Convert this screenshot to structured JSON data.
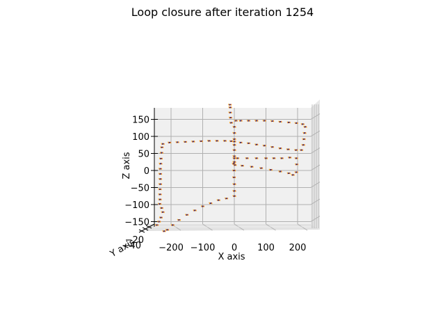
{
  "chart_data": {
    "type": "scatter",
    "projection": "3d",
    "title": "Loop closure after iteration 1254",
    "xlabel": "X axis",
    "ylabel": "Y axis",
    "zlabel": "Z axis",
    "xticks": [
      "−200",
      "−100",
      "0",
      "100",
      "200"
    ],
    "xtick_values": [
      -200,
      -100,
      0,
      100,
      200
    ],
    "zticks": [
      "−150",
      "−100",
      "−50",
      "0",
      "50",
      "100",
      "150"
    ],
    "ztick_values": [
      -150,
      -100,
      -50,
      0,
      50,
      100,
      150
    ],
    "yticks": [
      "−40",
      "−20"
    ],
    "xlim": [
      -250,
      250
    ],
    "zlim": [
      -170,
      190
    ],
    "grid": true,
    "marker_colors": {
      "arrow_dark": "#3a2a6a",
      "arrow_warm": "#e8621a",
      "arrow_light": "#f5b52e"
    },
    "pane_color": "#f0f0f0",
    "grid_color": "#b0b0b0",
    "series": [
      {
        "points": [
          [
            -245,
            -160
          ],
          [
            -238,
            -150
          ],
          [
            -232,
            -138
          ],
          [
            -226,
            -122
          ],
          [
            -230,
            -110
          ],
          [
            -236,
            -98
          ],
          [
            -235,
            -85
          ],
          [
            -235,
            -70
          ],
          [
            -235,
            -55
          ],
          [
            -234,
            -40
          ],
          [
            -234,
            -25
          ],
          [
            -234,
            -10
          ],
          [
            -234,
            5
          ],
          [
            -233,
            20
          ],
          [
            -232,
            35
          ],
          [
            -230,
            52
          ],
          [
            -229,
            68
          ],
          [
            -226,
            78
          ],
          [
            -205,
            82
          ],
          [
            -180,
            83
          ],
          [
            -155,
            84
          ],
          [
            -130,
            85
          ],
          [
            -105,
            86
          ],
          [
            -80,
            87
          ],
          [
            -55,
            87
          ],
          [
            -30,
            87
          ],
          [
            -10,
            86
          ],
          [
            0,
            85
          ],
          [
            20,
            82
          ],
          [
            45,
            80
          ],
          [
            70,
            76
          ],
          [
            95,
            73
          ],
          [
            120,
            69
          ],
          [
            145,
            65
          ],
          [
            170,
            62
          ],
          [
            195,
            60
          ],
          [
            212,
            60
          ],
          [
            218,
            75
          ],
          [
            220,
            92
          ],
          [
            222,
            110
          ],
          [
            224,
            128
          ],
          [
            216,
            136
          ],
          [
            196,
            139
          ],
          [
            172,
            141
          ],
          [
            145,
            143
          ],
          [
            120,
            145
          ],
          [
            95,
            146
          ],
          [
            70,
            146
          ],
          [
            45,
            146
          ],
          [
            20,
            146
          ],
          [
            5,
            146
          ],
          [
            0,
            128
          ],
          [
            0,
            110
          ],
          [
            0,
            92
          ],
          [
            0,
            75
          ],
          [
            0,
            60
          ],
          [
            0,
            42
          ],
          [
            0,
            25
          ],
          [
            2,
            16
          ],
          [
            25,
            14
          ],
          [
            55,
            11
          ],
          [
            85,
            7
          ],
          [
            115,
            2
          ],
          [
            145,
            -3
          ],
          [
            172,
            -8
          ],
          [
            185,
            -13
          ],
          [
            196,
            -5
          ],
          [
            197,
            18
          ],
          [
            196,
            36
          ],
          [
            175,
            38
          ],
          [
            150,
            36
          ],
          [
            125,
            36
          ],
          [
            100,
            36
          ],
          [
            70,
            36
          ],
          [
            40,
            36
          ],
          [
            10,
            36
          ],
          [
            0,
            36
          ],
          [
            -2,
            20
          ],
          [
            -1,
            0
          ],
          [
            -1,
            -20
          ],
          [
            0,
            -40
          ],
          [
            0,
            -60
          ],
          [
            0,
            -75
          ],
          [
            -25,
            -82
          ],
          [
            -50,
            -87
          ],
          [
            -75,
            -96
          ],
          [
            -100,
            -105
          ],
          [
            -125,
            -117
          ],
          [
            -150,
            -130
          ],
          [
            -175,
            -145
          ],
          [
            -195,
            -160
          ],
          [
            -212,
            -174
          ],
          [
            -222,
            -178
          ],
          [
            -10,
            140
          ],
          [
            -12,
            155
          ],
          [
            -13,
            170
          ],
          [
            -13,
            185
          ],
          [
            -14,
            193
          ]
        ]
      }
    ]
  }
}
